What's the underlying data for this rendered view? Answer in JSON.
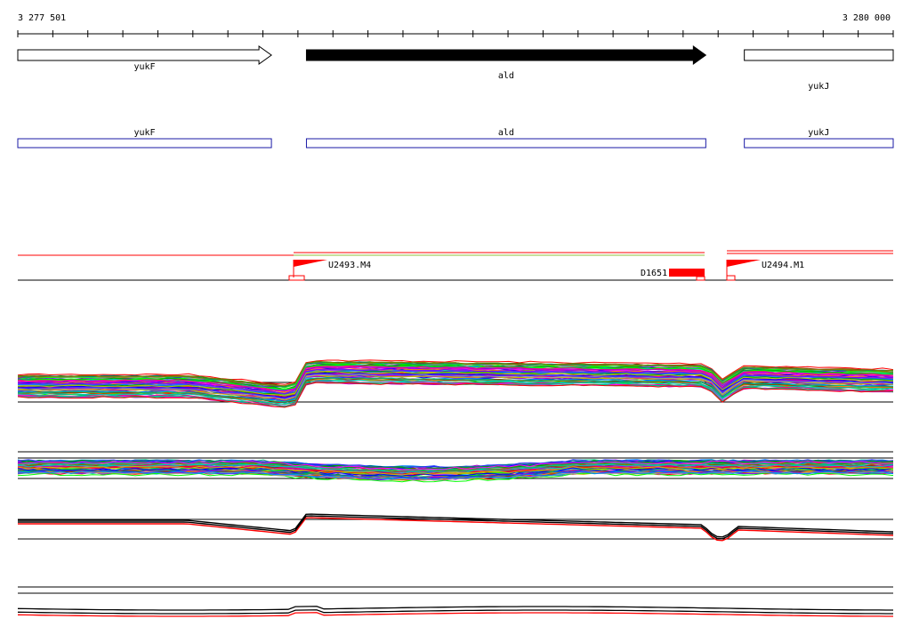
{
  "ruler": {
    "start_label": "3 277 501",
    "end_label": "3 280 000",
    "start": 3277501,
    "end": 3280000
  },
  "genes": [
    {
      "name": "yukF",
      "start": 3277501,
      "end": 3278225,
      "strand": "+",
      "fill": "#ffffff"
    },
    {
      "name": "ald",
      "start": 3278325,
      "end": 3279465,
      "strand": "+",
      "fill": "#000000"
    },
    {
      "name": "yukJ",
      "start": 3279575,
      "end": 3280000,
      "strand": "+",
      "fill": "#ffffff"
    }
  ],
  "cds": [
    {
      "name": "yukF",
      "start": 3277501,
      "end": 3278225
    },
    {
      "name": "ald",
      "start": 3278325,
      "end": 3279465
    },
    {
      "name": "yukJ",
      "start": 3279575,
      "end": 3280000
    }
  ],
  "features": {
    "promoters": [
      {
        "name": "U2493.M4",
        "position": 3278287
      },
      {
        "name": "U2494.M1",
        "position": 3279528
      }
    ],
    "terminator": {
      "name": "D1651",
      "start": 3279337,
      "end": 3279465
    }
  },
  "colors": {
    "gene_outline": "#000000",
    "cds_outline": "#1a1aa6",
    "feature": "#ff0000",
    "accent_line": "#ff0000",
    "green_line": "#8fbf3a",
    "avg_line": "#000000"
  }
}
